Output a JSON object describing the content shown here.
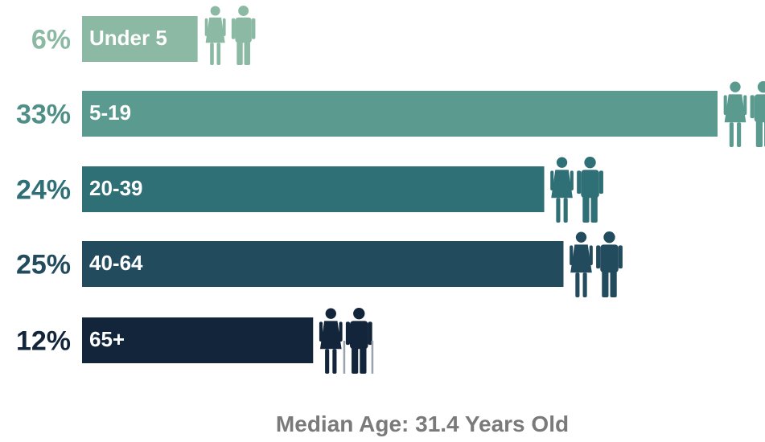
{
  "chart_data": {
    "type": "bar",
    "orientation": "horizontal",
    "categories": [
      "Under 5",
      "5-19",
      "20-39",
      "40-64",
      "65+"
    ],
    "values": [
      6,
      33,
      24,
      25,
      12
    ],
    "value_labels": [
      "6%",
      "33%",
      "24%",
      "25%",
      "12%"
    ],
    "colors": [
      "#8bb9a3",
      "#5a9a8f",
      "#2f6f76",
      "#224b5e",
      "#13253b"
    ],
    "icons": [
      "child-pair-icon",
      "teen-pair-icon",
      "adult-pair-icon",
      "middle-age-pair-icon",
      "senior-pair-icon"
    ],
    "xlim": [
      0,
      33
    ]
  },
  "footer": {
    "median_text": "Median Age: 31.4 Years Old"
  }
}
